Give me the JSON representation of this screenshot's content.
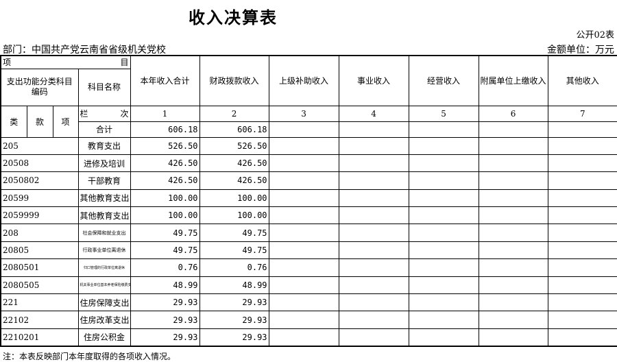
{
  "title": "收入决算表",
  "form_no": "公开02表",
  "department": "部门：中国共产党云南省省级机关党校",
  "unit": "金额单位：万元",
  "header": {
    "item_left": "项",
    "item_right": "目",
    "code": "支出功能分类科目编码",
    "name": "科目名称",
    "cols": [
      "本年收入合计",
      "财政拨款收入",
      "上级补助收入",
      "事业收入",
      "经营收入",
      "附属单位上缴收入",
      "其他收入"
    ],
    "lei": "类",
    "kuan": "款",
    "xiang": "项",
    "lanci_left": "栏",
    "lanci_right": "次",
    "col_nums": [
      "1",
      "2",
      "3",
      "4",
      "5",
      "6",
      "7"
    ]
  },
  "total": {
    "name": "合计",
    "total": "606.18",
    "fiscal": "606.18"
  },
  "rows": [
    {
      "code": "205",
      "name": "教育支出",
      "total": "526.50",
      "fiscal": "526.50"
    },
    {
      "code": "20508",
      "name": "进修及培训",
      "total": "426.50",
      "fiscal": "426.50"
    },
    {
      "code": "2050802",
      "name": "干部教育",
      "total": "426.50",
      "fiscal": "426.50"
    },
    {
      "code": "20599",
      "name": "其他教育支出",
      "total": "100.00",
      "fiscal": "100.00"
    },
    {
      "code": "2059999",
      "name": "其他教育支出",
      "total": "100.00",
      "fiscal": "100.00"
    },
    {
      "code": "208",
      "name": "社会保障和就业支出",
      "total": "49.75",
      "fiscal": "49.75"
    },
    {
      "code": "20805",
      "name": "行政事业单位离退休",
      "total": "49.75",
      "fiscal": "49.75"
    },
    {
      "code": "2080501",
      "name": "归口管理的行政单位离退休",
      "total": "0.76",
      "fiscal": "0.76"
    },
    {
      "code": "2080505",
      "name": "机关事业单位基本养老保险缴费支出",
      "total": "48.99",
      "fiscal": "48.99"
    },
    {
      "code": "221",
      "name": "住房保障支出",
      "total": "29.93",
      "fiscal": "29.93"
    },
    {
      "code": "22102",
      "name": "住房改革支出",
      "total": "29.93",
      "fiscal": "29.93"
    },
    {
      "code": "2210201",
      "name": "住房公积金",
      "total": "29.93",
      "fiscal": "29.93"
    }
  ],
  "footer": "注：本表反映部门本年度取得的各项收入情况。"
}
